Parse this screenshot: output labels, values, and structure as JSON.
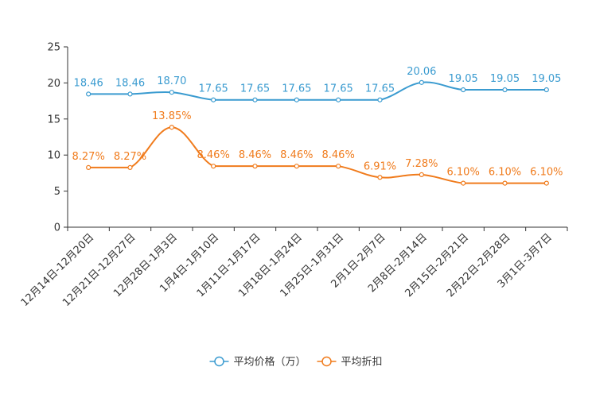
{
  "chart_data": {
    "type": "line",
    "title": "",
    "xlabel": "",
    "ylabel": "",
    "ylim": [
      0,
      25
    ],
    "yticks": [
      0,
      5,
      10,
      15,
      20,
      25
    ],
    "grid": false,
    "legend_position": "bottom-center",
    "categories": [
      "12月14日-12月20日",
      "12月21日-12月27日",
      "12月28日-1月3日",
      "1月4日-1月10日",
      "1月11日-1月17日",
      "1月18日-1月24日",
      "1月25日-1月31日",
      "2月1日-2月7日",
      "2月8日-2月14日",
      "2月15日-2月21日",
      "2月22日-2月28日",
      "3月1日-3月7日"
    ],
    "series": [
      {
        "name": "平均价格（万）",
        "color": "#3a9bd0",
        "values": [
          18.46,
          18.46,
          18.7,
          17.65,
          17.65,
          17.65,
          17.65,
          17.65,
          20.06,
          19.05,
          19.05,
          19.05
        ],
        "labels": [
          "18.46",
          "18.46",
          "18.70",
          "17.65",
          "17.65",
          "17.65",
          "17.65",
          "17.65",
          "20.06",
          "19.05",
          "19.05",
          "19.05"
        ]
      },
      {
        "name": "平均折扣",
        "color": "#f07b1c",
        "values": [
          8.27,
          8.27,
          13.85,
          8.46,
          8.46,
          8.46,
          8.46,
          6.91,
          7.28,
          6.1,
          6.1,
          6.1
        ],
        "labels": [
          "8.27%",
          "8.27%",
          "13.85%",
          "8.46%",
          "8.46%",
          "8.46%",
          "8.46%",
          "6.91%",
          "7.28%",
          "6.10%",
          "6.10%",
          "6.10%"
        ]
      }
    ]
  }
}
